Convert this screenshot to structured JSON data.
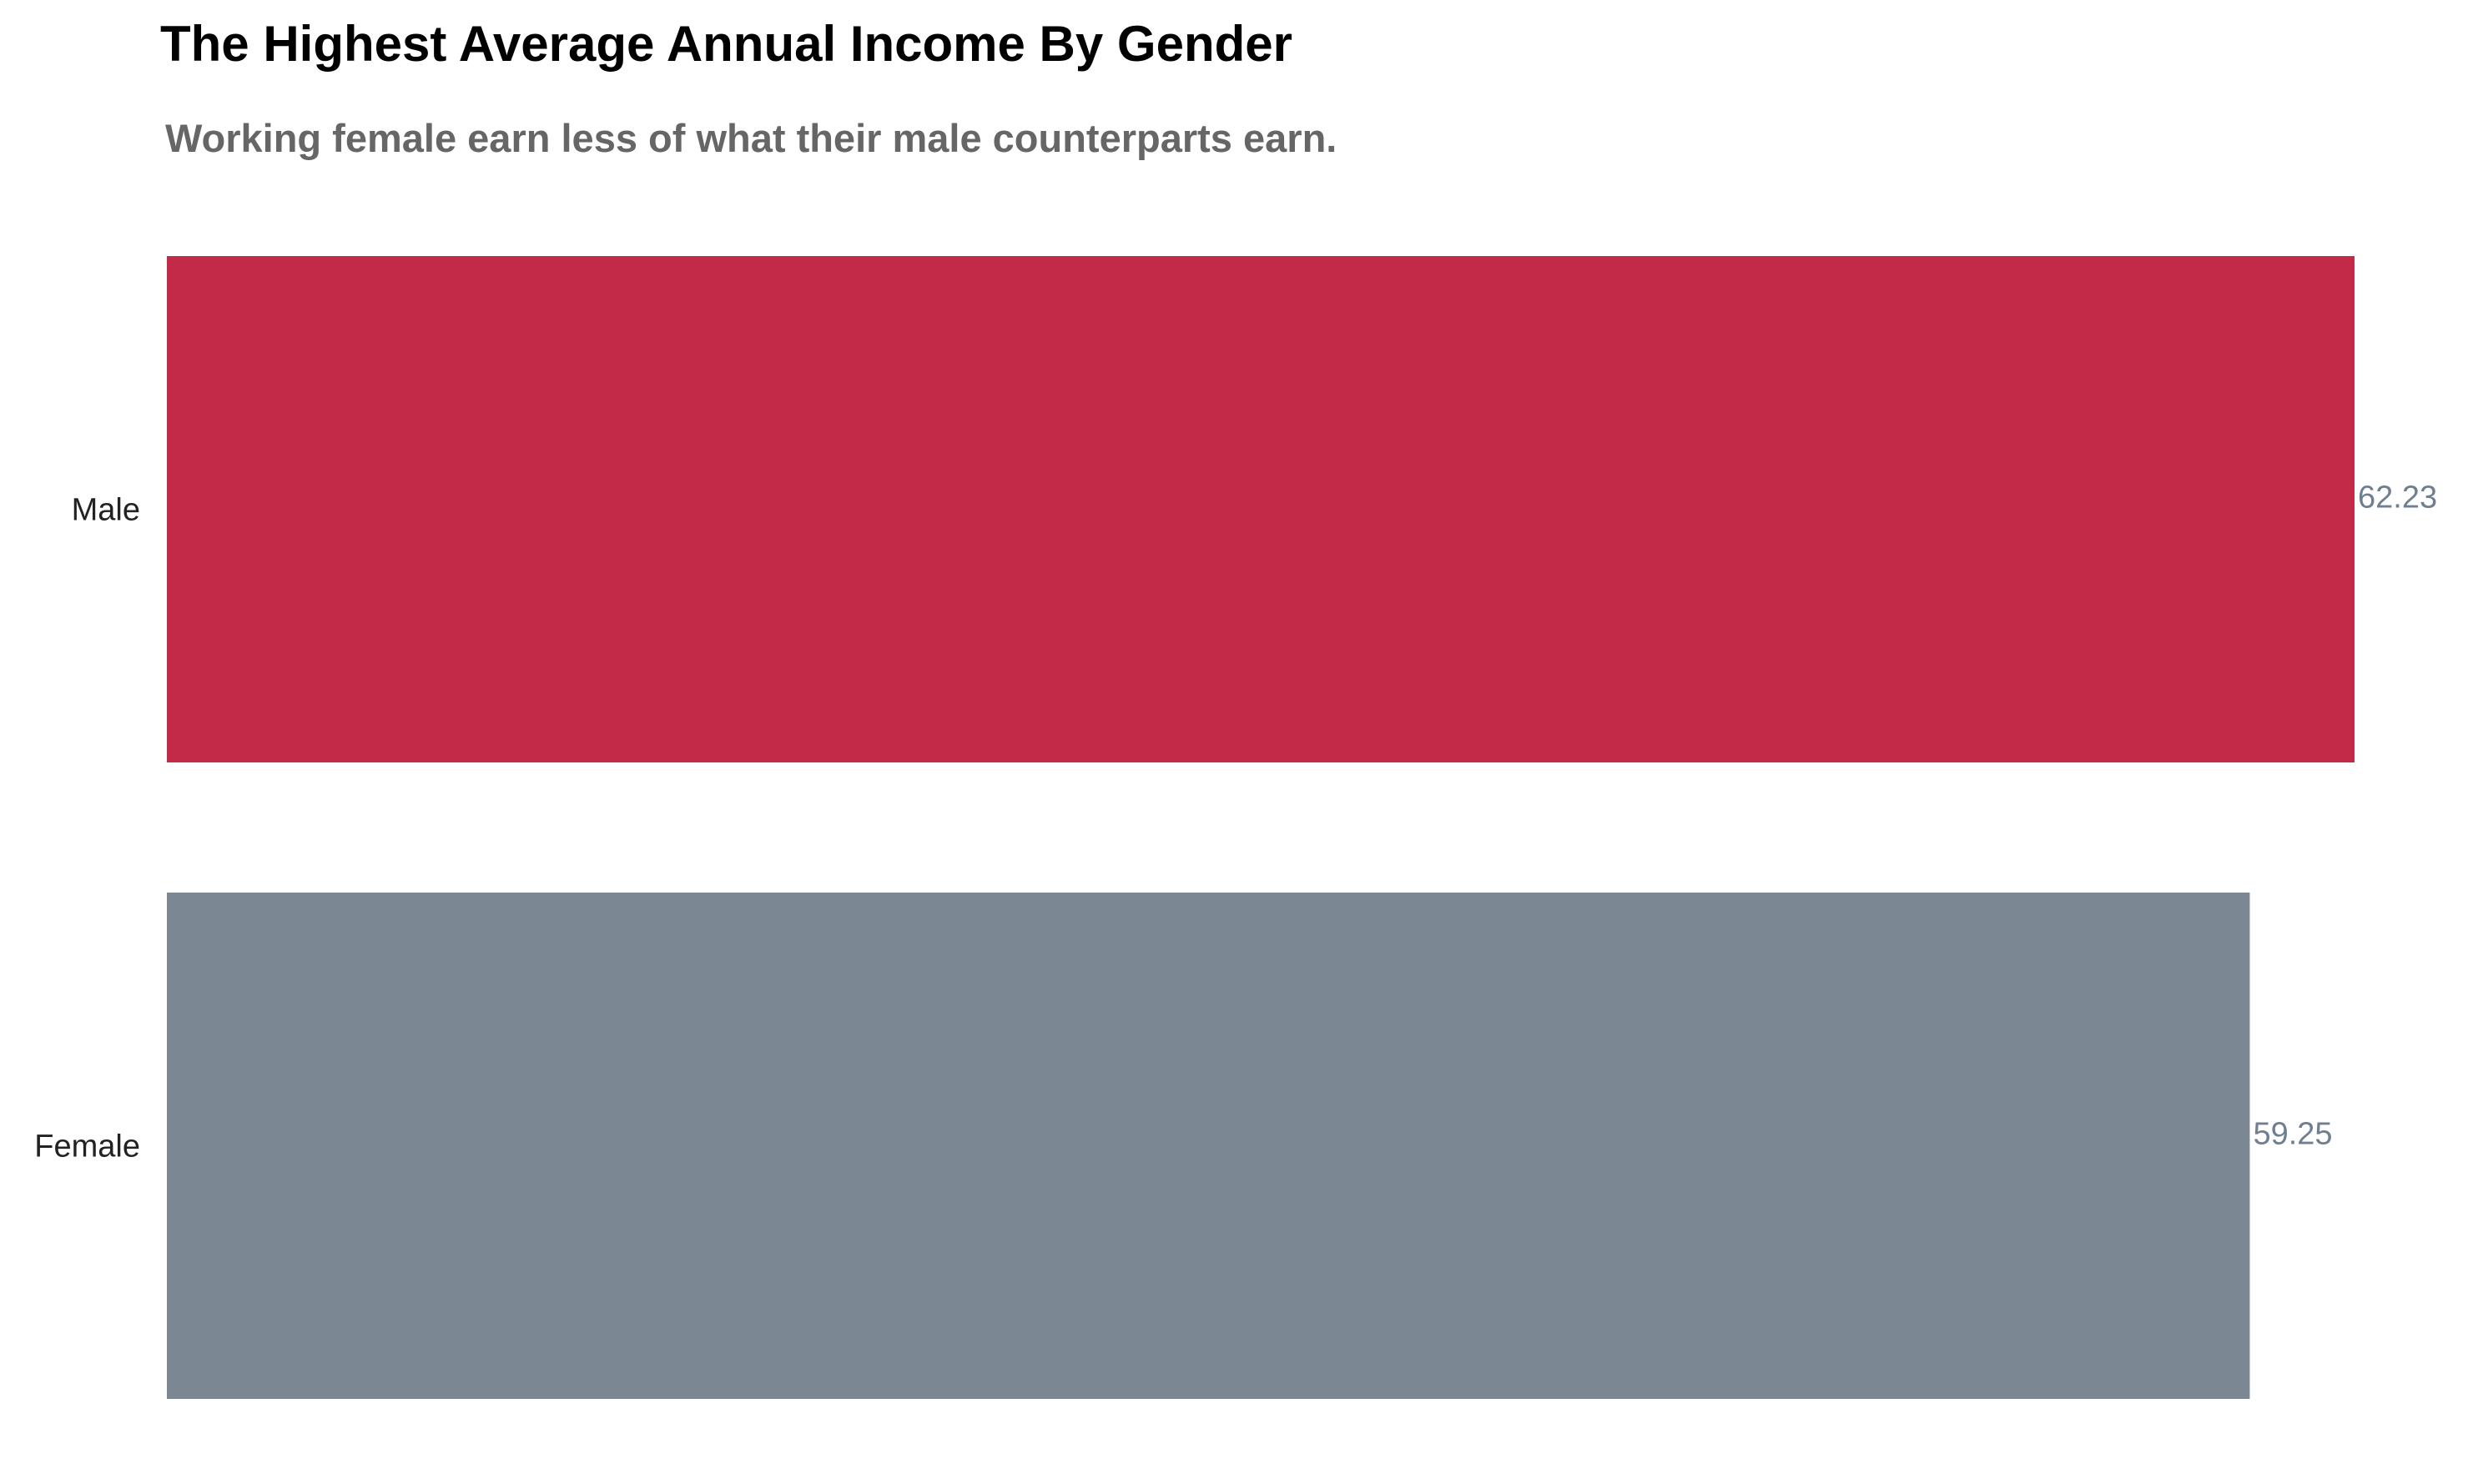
{
  "chart_data": {
    "type": "bar",
    "orientation": "horizontal",
    "title": "The Highest Average Annual Income By Gender",
    "subtitle": "Working female earn less of what their male counterparts earn.",
    "categories": [
      "Male",
      "Female"
    ],
    "values": [
      62.23,
      59.25
    ],
    "value_labels": [
      "62.23",
      "59.25"
    ],
    "colors": [
      "#c22a48",
      "#7b8894"
    ],
    "value_label_color": "#6f7f90",
    "category_label_color": "#222222",
    "xlabel": "",
    "ylabel": "",
    "xlim": [
      0,
      62.23
    ],
    "grid": false,
    "legend": "none"
  }
}
